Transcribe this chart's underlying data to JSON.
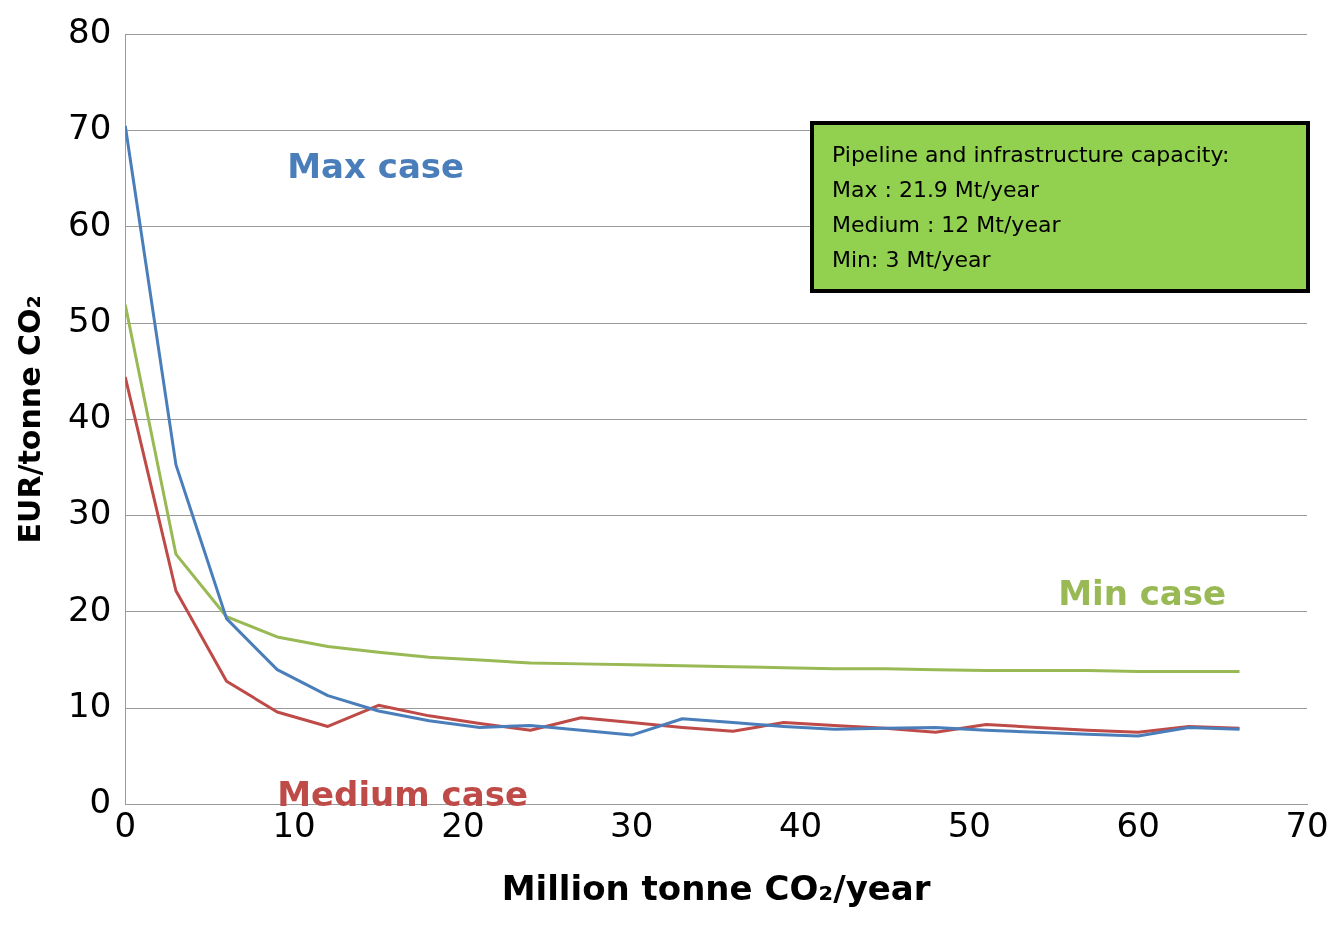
{
  "chart_data": {
    "type": "line",
    "xlabel": "Million tonne CO₂/year",
    "ylabel": "EUR/tonne CO₂",
    "x": [
      0,
      3,
      6,
      9,
      12,
      15,
      18,
      21,
      24,
      27,
      30,
      33,
      36,
      39,
      42,
      45,
      48,
      51,
      54,
      57,
      60,
      63,
      66
    ],
    "series": [
      {
        "name": "Max case",
        "color": "#4a7ebb",
        "values": [
          70.5,
          35.3,
          19.3,
          14,
          11.3,
          9.7,
          8.7,
          8.0,
          8.2,
          7.7,
          7.2,
          8.9,
          8.5,
          8.1,
          7.8,
          7.9,
          8.0,
          7.7,
          7.5,
          7.3,
          7.1,
          8.0,
          7.8
        ]
      },
      {
        "name": "Medium case",
        "color": "#be4b48",
        "values": [
          44.4,
          22.2,
          12.8,
          9.6,
          8.1,
          10.3,
          9.2,
          8.4,
          7.7,
          9.0,
          8.5,
          8.0,
          7.6,
          8.5,
          8.2,
          7.9,
          7.5,
          8.3,
          8.0,
          7.7,
          7.5,
          8.1,
          7.9
        ]
      },
      {
        "name": "Min case",
        "color": "#98b954",
        "values": [
          51.9,
          26.0,
          19.5,
          17.4,
          16.4,
          15.8,
          15.3,
          15.0,
          14.7,
          14.6,
          14.5,
          14.4,
          14.3,
          14.2,
          14.1,
          14.1,
          14.0,
          13.9,
          13.9,
          13.9,
          13.8,
          13.8,
          13.8
        ]
      }
    ],
    "xlim": [
      0,
      70
    ],
    "xticks": [
      0,
      10,
      20,
      30,
      40,
      50,
      60,
      70
    ],
    "ylim": [
      0,
      80
    ],
    "yticks": [
      0,
      10,
      20,
      30,
      40,
      50,
      60,
      70,
      80
    ],
    "grid": "y",
    "legend": false,
    "marker": "none",
    "line_style": "solid",
    "annotations": [
      "Pipeline and infrastructure capacity:\nMax : 21.9 Mt/year\nMedium : 12 Mt/year\nMin: 3 Mt/year"
    ]
  }
}
